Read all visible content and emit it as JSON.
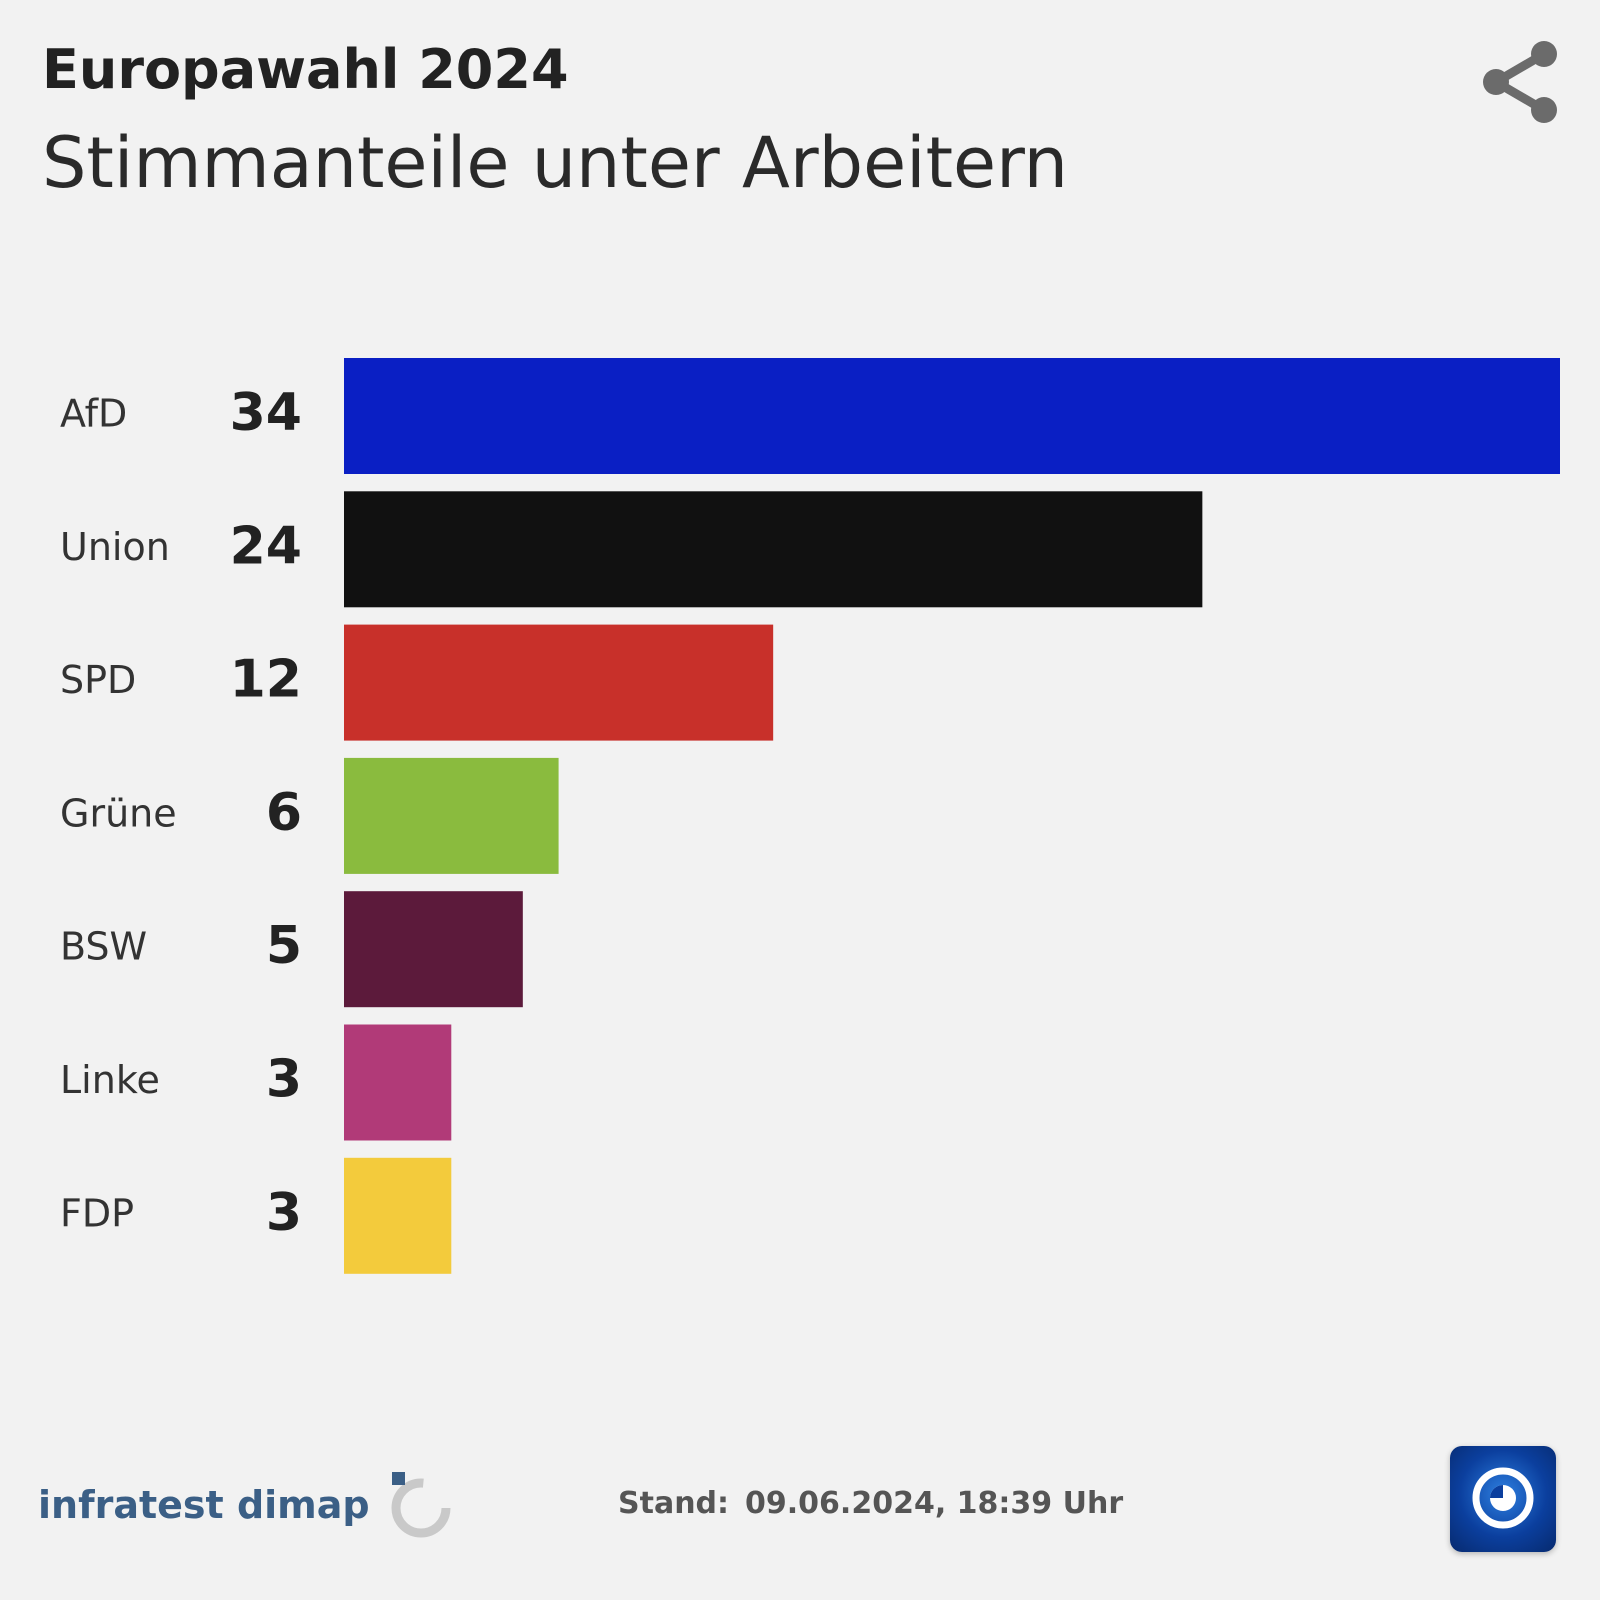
{
  "header": {
    "title": "Europawahl 2024",
    "subtitle": "Stimmanteile unter Arbeitern",
    "share_icon": "share-icon"
  },
  "chart_data": {
    "type": "bar",
    "orientation": "horizontal",
    "categories": [
      "AfD",
      "Union",
      "SPD",
      "Grüne",
      "BSW",
      "Linke",
      "FDP"
    ],
    "values": [
      34,
      24,
      12,
      6,
      5,
      3,
      3
    ],
    "colors": [
      "#0a1fc4",
      "#111111",
      "#c8302a",
      "#8abb3e",
      "#5c1a3b",
      "#b13a78",
      "#f3cb3c"
    ],
    "title": "Europawahl 2024",
    "subtitle": "Stimmanteile unter Arbeitern",
    "xlabel": "",
    "ylabel": "",
    "xlim": [
      0,
      34
    ],
    "grid": false,
    "legend": "none",
    "data_labels": "left of bars"
  },
  "footer": {
    "source": "infratest dimap",
    "source_icon": "infratest-dimap-logo",
    "stand_label": "Stand:",
    "stand_value": "09.06.2024, 18:39 Uhr",
    "broadcaster_icon": "tagesschau-logo"
  }
}
